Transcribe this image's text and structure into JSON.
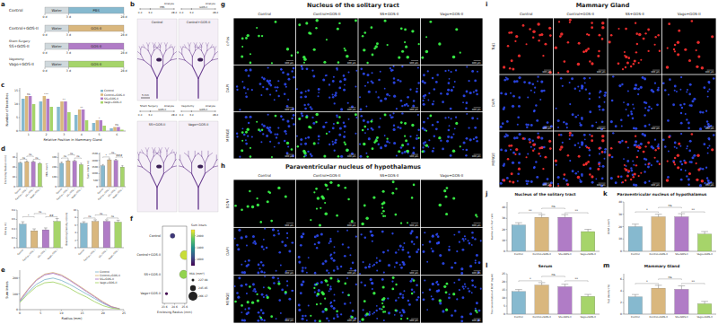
{
  "figure": {
    "panel_labels": [
      "a",
      "b",
      "c",
      "d",
      "e",
      "f",
      "g",
      "h",
      "i",
      "j",
      "k",
      "l",
      "m"
    ],
    "schematic": {
      "rows": [
        {
          "group": "Control",
          "steps": [
            "Water",
            "PBS"
          ]
        },
        {
          "group": "Control+GOS-II",
          "steps": [
            "Water",
            "GOS-II"
          ]
        },
        {
          "surgery": "Sham Surgery",
          "group": "SS+GOS-II",
          "steps": [
            "Water",
            "GOS-II"
          ]
        },
        {
          "surgery": "Vagotomy",
          "group": "Vago+GOS-II",
          "steps": [
            "Water",
            "GOS-II"
          ]
        }
      ],
      "days": [
        "0 d",
        "3 d",
        "28 d"
      ]
    },
    "wholemounts": {
      "days": [
        "0 d",
        "3 d",
        "28 d"
      ],
      "scale_bar": "5 mm",
      "images": [
        {
          "title": "Control",
          "events": [
            "PBS",
            "Analyze"
          ]
        },
        {
          "title": "Control+GOS-II",
          "events": [
            "GOS-II",
            "Analyze"
          ]
        },
        {
          "title": "SS+GOS-II",
          "events": [
            "Sham Surgery",
            "GOS-II",
            "Analyze"
          ]
        },
        {
          "title": "Vago+GOS-II",
          "events": [
            "Vagotomy",
            "GOS-II",
            "Analyze"
          ]
        }
      ]
    },
    "micrographs": [
      {
        "title": "Nucleus of the solitary tract",
        "rows": [
          "c-Fos",
          "DAPI",
          "MERGE"
        ],
        "columns": [
          "Control",
          "Control+GOS-II",
          "SS+GOS-II",
          "Vago+GOS-II"
        ],
        "scale_bar": "100 μm"
      },
      {
        "title": "Paraventricular nucleus of hypothalamus",
        "rows": [
          "BDNF",
          "DAPI",
          "MERGE"
        ],
        "columns": [
          "Control",
          "Control+GOS-II",
          "SS+GOS-II",
          "Vago+GOS-II"
        ],
        "scale_bar": "100 μm"
      },
      {
        "title": "Mammary Gland",
        "rows": [
          "Tuj1",
          "DAPI",
          "MERGE"
        ],
        "columns": [
          "Control",
          "Control+GOS-II",
          "SS+GOS-II",
          "Vago+GOS-II"
        ],
        "scale_bar": "100 μm"
      }
    ]
  },
  "chart_data": [
    {
      "type": "bar",
      "x_label": "Relative Position in Mammary Gland",
      "y_label": "Number of branches",
      "categories": [
        "1",
        "2",
        "3",
        "4",
        "5",
        "6"
      ],
      "series": [
        {
          "name": "Control",
          "color": "#86b9cf",
          "values": [
            12,
            11,
            9,
            6,
            3,
            1
          ]
        },
        {
          "name": "Control+GOS-II",
          "color": "#d9b77e",
          "values": [
            13,
            13,
            11,
            8,
            4,
            1.5
          ]
        },
        {
          "name": "SS+GOS-II",
          "color": "#b07cc6",
          "values": [
            13,
            12,
            11,
            8,
            4,
            1.5
          ]
        },
        {
          "name": "Vago+GOS-II",
          "color": "#a6d46a",
          "values": [
            10,
            9,
            7,
            4,
            2,
            0.5
          ]
        }
      ],
      "annotations": [
        "ns",
        "***",
        "**",
        "**",
        "*",
        "ns"
      ],
      "ylim": [
        0,
        16
      ],
      "yticks": [
        0,
        5,
        10,
        15
      ],
      "legend": "top-right"
    },
    {
      "type": "bar",
      "y_label": "Enclosing Radius (mm)",
      "categories": [
        "Control",
        "Control+GOS-II",
        "SS+GOS-II",
        "Vago+GOS-II"
      ],
      "values": [
        24.4,
        25.6,
        25.5,
        23.8
      ],
      "errors": [
        0.8,
        0.7,
        0.8,
        0.9
      ],
      "colors": [
        "#86b9cf",
        "#d9b77e",
        "#b07cc6",
        "#a6d46a"
      ],
      "significance": [
        "ns",
        "ns",
        "ns"
      ],
      "ylim": [
        0,
        35
      ],
      "yticks": [
        0,
        10,
        20,
        30
      ]
    },
    {
      "type": "bar",
      "y_label": "MIA (mm²)",
      "categories": [
        "Control",
        "Control+GOS-II",
        "SS+GOS-II",
        "Vago+GOS-II"
      ],
      "values": [
        240,
        266,
        262,
        227
      ],
      "errors": [
        12,
        10,
        11,
        14
      ],
      "colors": [
        "#86b9cf",
        "#d9b77e",
        "#b07cc6",
        "#a6d46a"
      ],
      "significance": [
        "ns",
        "ns",
        "ns"
      ],
      "ylim": [
        0,
        350
      ],
      "yticks": [
        0,
        100,
        200,
        300
      ]
    },
    {
      "type": "bar",
      "y_label": "Sum inters (n)",
      "categories": [
        "Control",
        "Control+GOS-II",
        "SS+GOS-II",
        "Vago+GOS-II"
      ],
      "values": [
        1600,
        2050,
        2000,
        1500
      ],
      "errors": [
        90,
        80,
        85,
        100
      ],
      "colors": [
        "#86b9cf",
        "#d9b77e",
        "#b07cc6",
        "#a6d46a"
      ],
      "significance": [
        "*",
        "ns",
        "###"
      ],
      "ylim": [
        0,
        2600
      ],
      "yticks": [
        0,
        500,
        1000,
        1500,
        2000,
        2500
      ]
    },
    {
      "type": "bar",
      "y_label": "Decay (k)",
      "categories": [
        "Control",
        "Control+GOS-II",
        "SS+GOS-II",
        "Vago+GOS-II"
      ],
      "values": [
        0.5,
        0.36,
        0.38,
        0.56
      ],
      "errors": [
        0.05,
        0.04,
        0.04,
        0.06
      ],
      "colors": [
        "#86b9cf",
        "#d9b77e",
        "#b07cc6",
        "#a6d46a"
      ],
      "significance": [
        "*",
        "ns",
        "##"
      ],
      "ylim": [
        0,
        0.8
      ],
      "yticks": [
        0,
        0.2,
        0.4,
        0.6,
        0.8
      ]
    },
    {
      "type": "bar",
      "y_label": "Branching Density (n/mm)",
      "categories": [
        "Control",
        "Control+GOS-II",
        "SS+GOS-II",
        "Vago+GOS-II"
      ],
      "values": [
        6.5,
        7,
        7,
        6.8
      ],
      "errors": [
        0.4,
        0.4,
        0.4,
        0.5
      ],
      "colors": [
        "#86b9cf",
        "#d9b77e",
        "#b07cc6",
        "#a6d46a"
      ],
      "significance": [
        "ns",
        "ns",
        "ns"
      ],
      "ylim": [
        0,
        10
      ],
      "yticks": [
        0,
        2,
        4,
        6,
        8,
        10
      ]
    },
    {
      "type": "line",
      "x_label": "Radius (mm)",
      "y_label": "Sum inters",
      "x": [
        0,
        2,
        4,
        6,
        8,
        10,
        12,
        14,
        16,
        18,
        20,
        22,
        24
      ],
      "series": [
        {
          "name": "Control",
          "color": "#86b9cf",
          "values": [
            50,
            110,
            160,
            190,
            200,
            185,
            160,
            130,
            100,
            70,
            40,
            15,
            5
          ]
        },
        {
          "name": "Control+GOS-II",
          "color": "#d9b77e",
          "values": [
            60,
            130,
            190,
            225,
            235,
            220,
            190,
            155,
            120,
            85,
            50,
            20,
            5
          ]
        },
        {
          "name": "SS+GOS-II",
          "color": "#b07cc6",
          "values": [
            55,
            125,
            185,
            220,
            230,
            215,
            185,
            150,
            115,
            80,
            45,
            18,
            5
          ]
        },
        {
          "name": "Vago+GOS-II",
          "color": "#a6d46a",
          "values": [
            45,
            100,
            145,
            170,
            175,
            160,
            135,
            105,
            80,
            50,
            25,
            10,
            3
          ]
        }
      ],
      "xlim": [
        0,
        25
      ],
      "xticks": [
        0,
        5,
        10,
        15,
        20,
        25
      ],
      "ylim": [
        0,
        250
      ],
      "yticks": [
        0,
        100,
        200
      ],
      "legend": "top-right"
    },
    {
      "type": "scatter",
      "x_label": "Enclosing Radius (mm)",
      "categories": [
        "Control",
        "Control+GOS-II",
        "SS+GOS-II",
        "Vago+GOS-II"
      ],
      "values": [
        24.4,
        25.6,
        25.5,
        23.8
      ],
      "sizes": [
        240,
        266,
        262,
        227
      ],
      "color_values": [
        1600,
        2050,
        2000,
        1500
      ],
      "xlim": [
        23.4,
        25.8
      ],
      "xticks": [
        23.6,
        24.6,
        25.6
      ],
      "colorbar": {
        "label": "Sum inters",
        "lim": [
          1500,
          2100
        ],
        "ticks": [
          1600,
          1800,
          2000
        ]
      },
      "size_label": "MIA (mm²)",
      "size_legend": [
        227.08,
        245.85,
        266.17
      ]
    },
    {
      "type": "bar",
      "title": "Nucleus of the solitary tract",
      "y_label": "Number of c-Fos⁺ cells",
      "categories": [
        "Control",
        "Control+GOS-II",
        "SS+GOS-II",
        "Vago+GOS-II"
      ],
      "values": [
        24,
        31,
        31,
        18
      ],
      "errors": [
        2,
        2.5,
        2.5,
        2
      ],
      "colors": [
        "#86b9cf",
        "#d9b77e",
        "#b07cc6",
        "#a6d46a"
      ],
      "significance": [
        "**",
        "ns",
        "**"
      ],
      "ylim": [
        0,
        45
      ],
      "yticks": [
        0,
        10,
        20,
        30,
        40
      ]
    },
    {
      "type": "bar",
      "title": "Paraventricular nucleus of hypothalamus",
      "y_label": "BDNF (/mm²)",
      "categories": [
        "Control",
        "Control+GOS-II",
        "SS+GOS-II",
        "Vago+GOS-II"
      ],
      "values": [
        20,
        28,
        28,
        14
      ],
      "errors": [
        2,
        2,
        2.5,
        2
      ],
      "colors": [
        "#86b9cf",
        "#d9b77e",
        "#b07cc6",
        "#a6d46a"
      ],
      "significance": [
        "*",
        "ns",
        "**"
      ],
      "ylim": [
        0,
        40
      ],
      "yticks": [
        0,
        10,
        20,
        30,
        40
      ]
    },
    {
      "type": "bar",
      "title": "Serum",
      "y_label": "The concentration of BDNF (ng/ml)",
      "categories": [
        "Control",
        "Control+GOS-II",
        "SS+GOS-II",
        "Vago+GOS-II"
      ],
      "values": [
        14,
        18,
        17,
        11
      ],
      "errors": [
        1.2,
        1.5,
        1.5,
        1.2
      ],
      "colors": [
        "#86b9cf",
        "#d9b77e",
        "#b07cc6",
        "#a6d46a"
      ],
      "significance": [
        "*",
        "ns",
        "**"
      ],
      "ylim": [
        0,
        25
      ],
      "yticks": [
        0,
        5,
        10,
        15,
        20,
        25
      ]
    },
    {
      "type": "bar",
      "title": "Mammary Gland",
      "y_label": "Tuj1 density (%)",
      "categories": [
        "Control",
        "Control+GOS-II",
        "SS+GOS-II",
        "Vago+GOS-II"
      ],
      "values": [
        3,
        4.5,
        4.3,
        1.8
      ],
      "errors": [
        0.4,
        0.5,
        0.6,
        0.4
      ],
      "colors": [
        "#86b9cf",
        "#d9b77e",
        "#b07cc6",
        "#a6d46a"
      ],
      "significance": [
        "*",
        "ns",
        "**"
      ],
      "ylim": [
        0,
        7
      ],
      "yticks": [
        0,
        2,
        4,
        6
      ]
    }
  ]
}
